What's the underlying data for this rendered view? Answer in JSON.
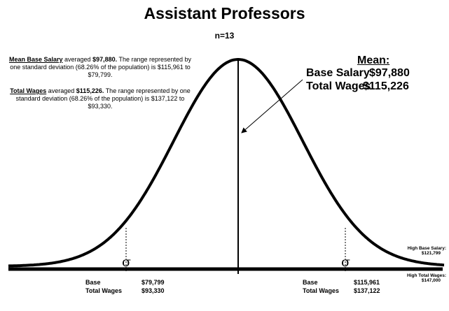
{
  "title": "Assistant Professors",
  "subtitle": "n=13",
  "notes": [
    {
      "label": "Mean Base Salary",
      "verb": "averaged",
      "amount": "$97,880.",
      "text": "The range represented by one standard deviation (68.26% of the population) is $115,961 to $79,799."
    },
    {
      "label": "Total Wages",
      "verb": "averaged",
      "amount": "$115,226.",
      "text": "The range represented by one standard deviation (68.26% of the population) is $137,122 to $93,330."
    }
  ],
  "mean": {
    "heading": "Mean:",
    "rows": [
      [
        "Base Salary",
        "$97,880"
      ],
      [
        "Total Wages",
        "$115,226"
      ]
    ]
  },
  "sigma_left": "σ",
  "sigma_right": "σ",
  "left_values": [
    [
      "Base",
      "$79,799"
    ],
    [
      "Total Wages",
      "$93,330"
    ]
  ],
  "right_values": [
    [
      "Base",
      "$115,961"
    ],
    [
      "Total Wages",
      "$137,122"
    ]
  ],
  "high_labels": [
    [
      "High Base Salary:",
      "$121,799"
    ],
    [
      "High Total Wages:",
      "$147,000"
    ]
  ]
}
